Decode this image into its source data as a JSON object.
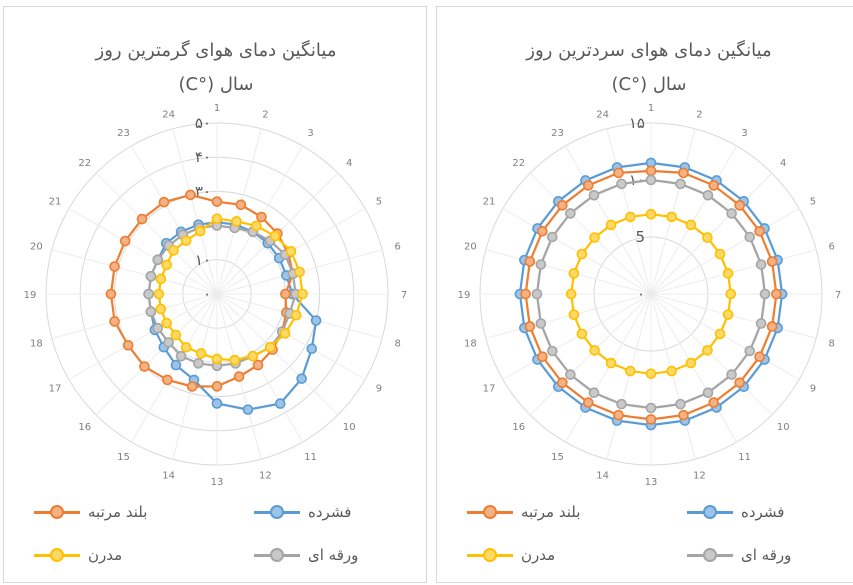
{
  "colors": {
    "compact": "#5B9BD5",
    "highrise": "#ED7D31",
    "slab": "#A5A5A5",
    "modern": "#FFC000",
    "grid": "#d9d9d9"
  },
  "legend": {
    "compact": "فشرده",
    "highrise": "بلند مرتبه",
    "slab": "ورقه ای",
    "modern": "مدرن"
  },
  "chart_data": [
    {
      "type": "radar",
      "title_line1": "میانگین دمای هوای گرمترین روز",
      "title_line2": "سال (°C)",
      "categories": [
        "1",
        "2",
        "3",
        "4",
        "5",
        "6",
        "7",
        "8",
        "9",
        "10",
        "11",
        "12",
        "13",
        "14",
        "15",
        "16",
        "17",
        "18",
        "19",
        "20",
        "21",
        "22",
        "23",
        "24"
      ],
      "radial_tick_labels": [
        "۰",
        "۱۰",
        "۲۰",
        "۳۰",
        "۴۰",
        "۵۰"
      ],
      "rlim": [
        0,
        50
      ],
      "grid": true,
      "legend_position": "bottom",
      "series": [
        {
          "name": "فشرده",
          "key": "compact",
          "values": [
            21,
            21,
            21,
            21,
            21,
            21,
            22,
            30,
            32,
            35,
            37,
            35,
            32,
            26,
            24,
            22,
            21,
            20,
            20,
            20,
            20,
            21,
            21,
            21
          ]
        },
        {
          "name": "بلند مرتبه",
          "key": "highrise",
          "values": [
            27,
            27,
            26,
            25,
            24,
            23,
            20,
            21,
            22,
            23,
            24,
            25,
            27,
            28,
            29,
            30,
            30,
            31,
            31,
            31,
            31,
            31,
            31,
            30
          ]
        },
        {
          "name": "ورقه ای",
          "key": "slab",
          "values": [
            20,
            20,
            21,
            22,
            23,
            23,
            23,
            22,
            22,
            22,
            21,
            21,
            21,
            21,
            21,
            20,
            20,
            20,
            20,
            20,
            20,
            20,
            20,
            20
          ]
        },
        {
          "name": "مدرن",
          "key": "modern",
          "values": [
            22,
            22,
            23,
            24,
            25,
            25,
            25,
            24,
            23,
            22,
            21,
            20,
            19,
            18,
            18,
            17,
            17,
            17,
            17,
            17,
            17,
            18,
            18,
            19
          ]
        }
      ]
    },
    {
      "type": "radar",
      "title_line1": "میانگین دمای هوای سردترین روز",
      "title_line2": "سال (°C)",
      "categories": [
        "1",
        "2",
        "3",
        "4",
        "5",
        "6",
        "7",
        "8",
        "9",
        "10",
        "11",
        "12",
        "13",
        "14",
        "15",
        "16",
        "17",
        "18",
        "19",
        "20",
        "21",
        "22",
        "23",
        "24"
      ],
      "radial_tick_labels": [
        "۰",
        "5",
        "۱۰",
        "۱۵"
      ],
      "rlim": [
        0,
        15
      ],
      "grid": true,
      "legend_position": "bottom",
      "series": [
        {
          "name": "فشرده",
          "key": "compact",
          "values": [
            11.5,
            11.5,
            11.5,
            11.5,
            11.5,
            11.5,
            11.5,
            11.5,
            11.5,
            11.5,
            11.5,
            11.5,
            11.5,
            11.5,
            11.5,
            11.5,
            11.5,
            11.5,
            11.5,
            11.5,
            11.5,
            11.5,
            11.5,
            11.5
          ]
        },
        {
          "name": "بلند مرتبه",
          "key": "highrise",
          "values": [
            10.8,
            11,
            11,
            11,
            11,
            11,
            11,
            11,
            11,
            11,
            11,
            11,
            11,
            11,
            11,
            11,
            11,
            11,
            11,
            11,
            11,
            11,
            11,
            11
          ]
        },
        {
          "name": "ورقه ای",
          "key": "slab",
          "values": [
            10,
            10,
            10,
            10,
            10,
            10,
            10,
            10,
            10,
            10,
            10,
            10,
            10,
            10,
            10,
            10,
            10,
            10,
            10,
            10,
            10,
            10,
            10,
            10
          ]
        },
        {
          "name": "مدرن",
          "key": "modern",
          "values": [
            7,
            7,
            7,
            7,
            7,
            7,
            7,
            7,
            7,
            7,
            7,
            7,
            7,
            7,
            7,
            7,
            7,
            7,
            7,
            7,
            7,
            7,
            7,
            7
          ]
        }
      ]
    }
  ]
}
